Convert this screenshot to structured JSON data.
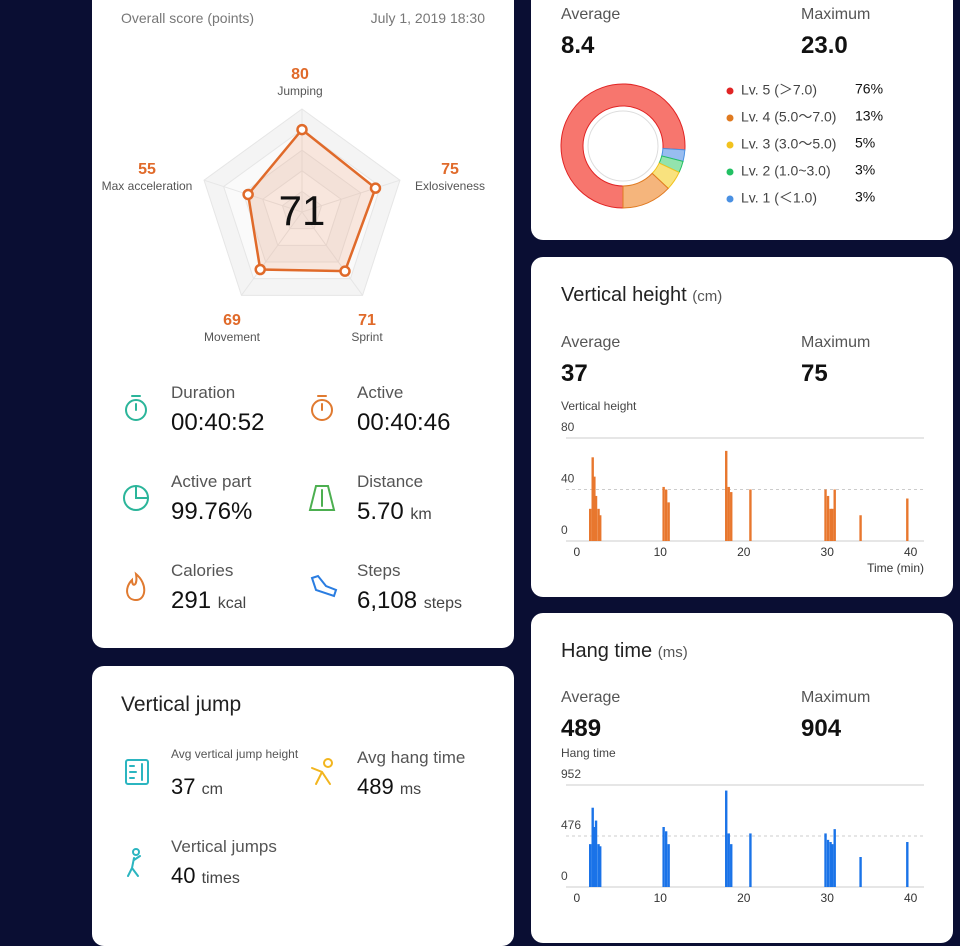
{
  "score_card": {
    "header": "Overall score (points)",
    "date": "July 1, 2019 18:30",
    "stats": [
      {
        "label": "Duration",
        "value": "00:40:52"
      },
      {
        "label": "Active",
        "value": "00:40:46"
      },
      {
        "label": "Active part",
        "value": "99.76%"
      },
      {
        "label": "Distance",
        "value": "5.70",
        "unit": "km"
      },
      {
        "label": "Calories",
        "value": "291",
        "unit": "kcal"
      },
      {
        "label": "Steps",
        "value": "6,108",
        "unit": "steps"
      }
    ]
  },
  "vertical_jump_card": {
    "title": "Vertical jump",
    "stats": [
      {
        "label": "Avg vertical jump height",
        "value": "37",
        "unit": "cm"
      },
      {
        "label": "Avg hang time",
        "value": "489",
        "unit": "ms"
      },
      {
        "label": "Vertical jumps",
        "value": "40",
        "unit": "times"
      }
    ]
  },
  "intensity_card": {
    "stats": [
      {
        "label": "Average",
        "value": "8.4"
      },
      {
        "label": "Maximum",
        "value": "23.0"
      }
    ]
  },
  "vertical_height_card": {
    "title": "Vertical height",
    "unit": "(cm)",
    "stats": [
      {
        "label": "Average",
        "value": "37"
      },
      {
        "label": "Maximum",
        "value": "75"
      }
    ]
  },
  "hang_time_card": {
    "title": "Hang time",
    "unit": "(ms)",
    "stats": [
      {
        "label": "Average",
        "value": "489"
      },
      {
        "label": "Maximum",
        "value": "904"
      }
    ]
  },
  "chart_data": [
    {
      "type": "radar",
      "center_value": 71,
      "categories": [
        "Jumping",
        "Exlosiveness",
        "Sprint",
        "Movement",
        "Max acceleration"
      ],
      "values": [
        80,
        75,
        71,
        69,
        55
      ],
      "rlim": [
        0,
        100
      ],
      "color": "#e06a2a"
    },
    {
      "type": "donut",
      "categories": [
        "Lv. 5 (＞7.0)",
        "Lv. 4 (5.0～7.0)",
        "Lv. 3 (3.0～5.0)",
        "Lv. 2 (1.0~3.0)",
        "Lv. 1 (＜1.0)"
      ],
      "values": [
        76,
        13,
        5,
        3,
        3
      ],
      "value_labels": [
        "76%",
        "13%",
        "5%",
        "3%",
        "3%"
      ],
      "colors": [
        "#f7766e",
        "#f5b57c",
        "#f9e27e",
        "#93e3ad",
        "#98bdf0"
      ],
      "legend_colors": [
        "#e02424",
        "#e07a20",
        "#f2c21e",
        "#22c063",
        "#4a90e2"
      ]
    },
    {
      "type": "bar",
      "ylabel": "Vertical height",
      "xlabel": "Time (min)",
      "color": "#e8772e",
      "x": [
        1.6,
        1.9,
        2.1,
        2.3,
        2.6,
        2.8,
        10.4,
        10.7,
        11.0,
        17.9,
        18.2,
        18.5,
        20.8,
        29.8,
        30.1,
        30.4,
        30.6,
        30.9,
        34.0,
        39.6
      ],
      "values": [
        25,
        65,
        50,
        35,
        25,
        20,
        42,
        40,
        30,
        70,
        42,
        38,
        40,
        40,
        35,
        25,
        25,
        40,
        20,
        33
      ],
      "xlim": [
        -1.3,
        41.6
      ],
      "xticks": [
        0,
        10,
        20,
        30,
        40
      ],
      "ylim": [
        0,
        80
      ],
      "yticks": [
        0,
        40,
        80
      ],
      "grid": true
    },
    {
      "type": "bar",
      "ylabel": "Hang time",
      "color": "#1a73e8",
      "x": [
        1.6,
        1.9,
        2.1,
        2.3,
        2.6,
        2.8,
        10.4,
        10.7,
        11.0,
        17.9,
        18.2,
        18.5,
        20.8,
        29.8,
        30.1,
        30.4,
        30.6,
        30.9,
        34.0,
        39.6
      ],
      "values": [
        400,
        740,
        560,
        620,
        400,
        380,
        560,
        520,
        400,
        900,
        500,
        400,
        500,
        500,
        440,
        420,
        400,
        540,
        280,
        420
      ],
      "xlim": [
        -1.3,
        41.6
      ],
      "xticks": [
        0,
        10,
        20,
        30,
        40
      ],
      "ylim": [
        0,
        952
      ],
      "yticks": [
        0,
        476,
        952
      ],
      "grid": true
    }
  ]
}
